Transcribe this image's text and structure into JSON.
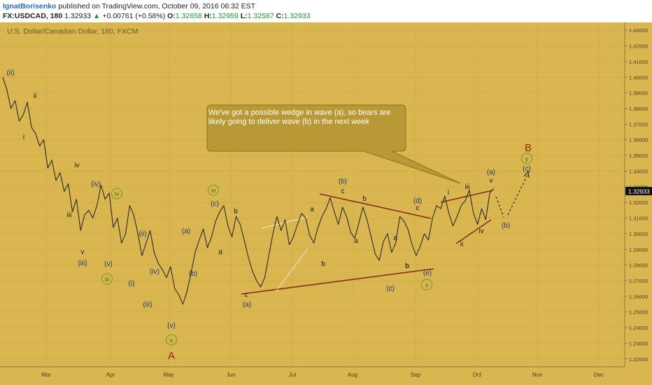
{
  "header": {
    "author": "IgnatBorisenko",
    "published": "published on TradingView.com, October 09, 2016 06:32 EST",
    "symbol": "FX:USDCAD, 180",
    "last": "1.32933",
    "change_arrow": "▲",
    "change": "+0.00761 (+0.58%)",
    "o_label": "O:",
    "o_value": "1.32658",
    "h_label": "H:",
    "h_value": "1.32959",
    "l_label": "L:",
    "l_value": "1.32587",
    "c_label": "C:",
    "c_value": "1.32933"
  },
  "chart_data": {
    "type": "line",
    "title": "U.S. Dollar/Canadian Dollar, 180, FXCM",
    "ylim": [
      1.215,
      1.435
    ],
    "price_ticks": [
      "1.43000",
      "1.42000",
      "1.41000",
      "1.40000",
      "1.39000",
      "1.38000",
      "1.37000",
      "1.36000",
      "1.35000",
      "1.34000",
      "1.33000",
      "1.32000",
      "1.31000",
      "1.30000",
      "1.29000",
      "1.28000",
      "1.27000",
      "1.26000",
      "1.25000",
      "1.24000",
      "1.23000",
      "1.22000"
    ],
    "last_price_label": "1.32933",
    "x_ticks": [
      "Mar",
      "Apr",
      "May",
      "Jun",
      "Jul",
      "Aug",
      "Sep",
      "Oct",
      "Nov",
      "Dec"
    ],
    "series": [
      {
        "values": [
          1.4,
          1.392,
          1.38,
          1.385,
          1.372,
          1.376,
          1.384,
          1.368,
          1.364,
          1.356,
          1.36,
          1.342,
          1.347,
          1.334,
          1.339,
          1.327,
          1.332,
          1.314,
          1.322,
          1.302,
          1.312,
          1.315,
          1.31,
          1.318,
          1.331,
          1.322,
          1.326,
          1.304,
          1.31,
          1.294,
          1.3,
          1.318,
          1.312,
          1.3,
          1.286,
          1.294,
          1.302,
          1.288,
          1.281,
          1.277,
          1.272,
          1.279,
          1.265,
          1.261,
          1.255,
          1.263,
          1.275,
          1.288,
          1.296,
          1.303,
          1.291,
          1.298,
          1.308,
          1.314,
          1.318,
          1.305,
          1.298,
          1.311,
          1.306,
          1.296,
          1.285,
          1.276,
          1.27,
          1.266,
          1.272,
          1.286,
          1.3,
          1.311,
          1.302,
          1.309,
          1.293,
          1.298,
          1.306,
          1.313,
          1.31,
          1.299,
          1.294,
          1.304,
          1.311,
          1.316,
          1.323,
          1.314,
          1.306,
          1.317,
          1.311,
          1.301,
          1.297,
          1.307,
          1.317,
          1.309,
          1.298,
          1.287,
          1.283,
          1.295,
          1.3,
          1.288,
          1.294,
          1.311,
          1.308,
          1.303,
          1.293,
          1.286,
          1.292,
          1.3,
          1.296,
          1.31,
          1.318,
          1.316,
          1.324,
          1.313,
          1.305,
          1.311,
          1.318,
          1.321,
          1.328,
          1.313,
          1.306,
          1.316,
          1.309,
          1.326,
          1.329
        ]
      }
    ],
    "wave_labels": [
      "(ii)",
      "ii",
      "i",
      "iv",
      "iii",
      "(iv)",
      "iv",
      "v",
      "(iii)",
      "(v)",
      "iii",
      "(ii)",
      "(i)",
      "(iv)",
      "(iii)",
      "(v)",
      "v",
      "A",
      "(a)",
      "(b)",
      "w",
      "(c)",
      "b",
      "a",
      "c",
      "(a)",
      "a",
      "b",
      "(b)",
      "c",
      "b",
      "a",
      "c",
      "b",
      "(c)",
      "(d)",
      "c",
      "a",
      "b",
      "(e)",
      "x",
      "i",
      "iii",
      "(a)",
      "v",
      "ii",
      "iv",
      "(b)",
      "B",
      "y",
      "(c)"
    ],
    "annotation": "We've got a possible wedge in wave (a), so bears are likely going to deliver wave (b) in the next week"
  }
}
